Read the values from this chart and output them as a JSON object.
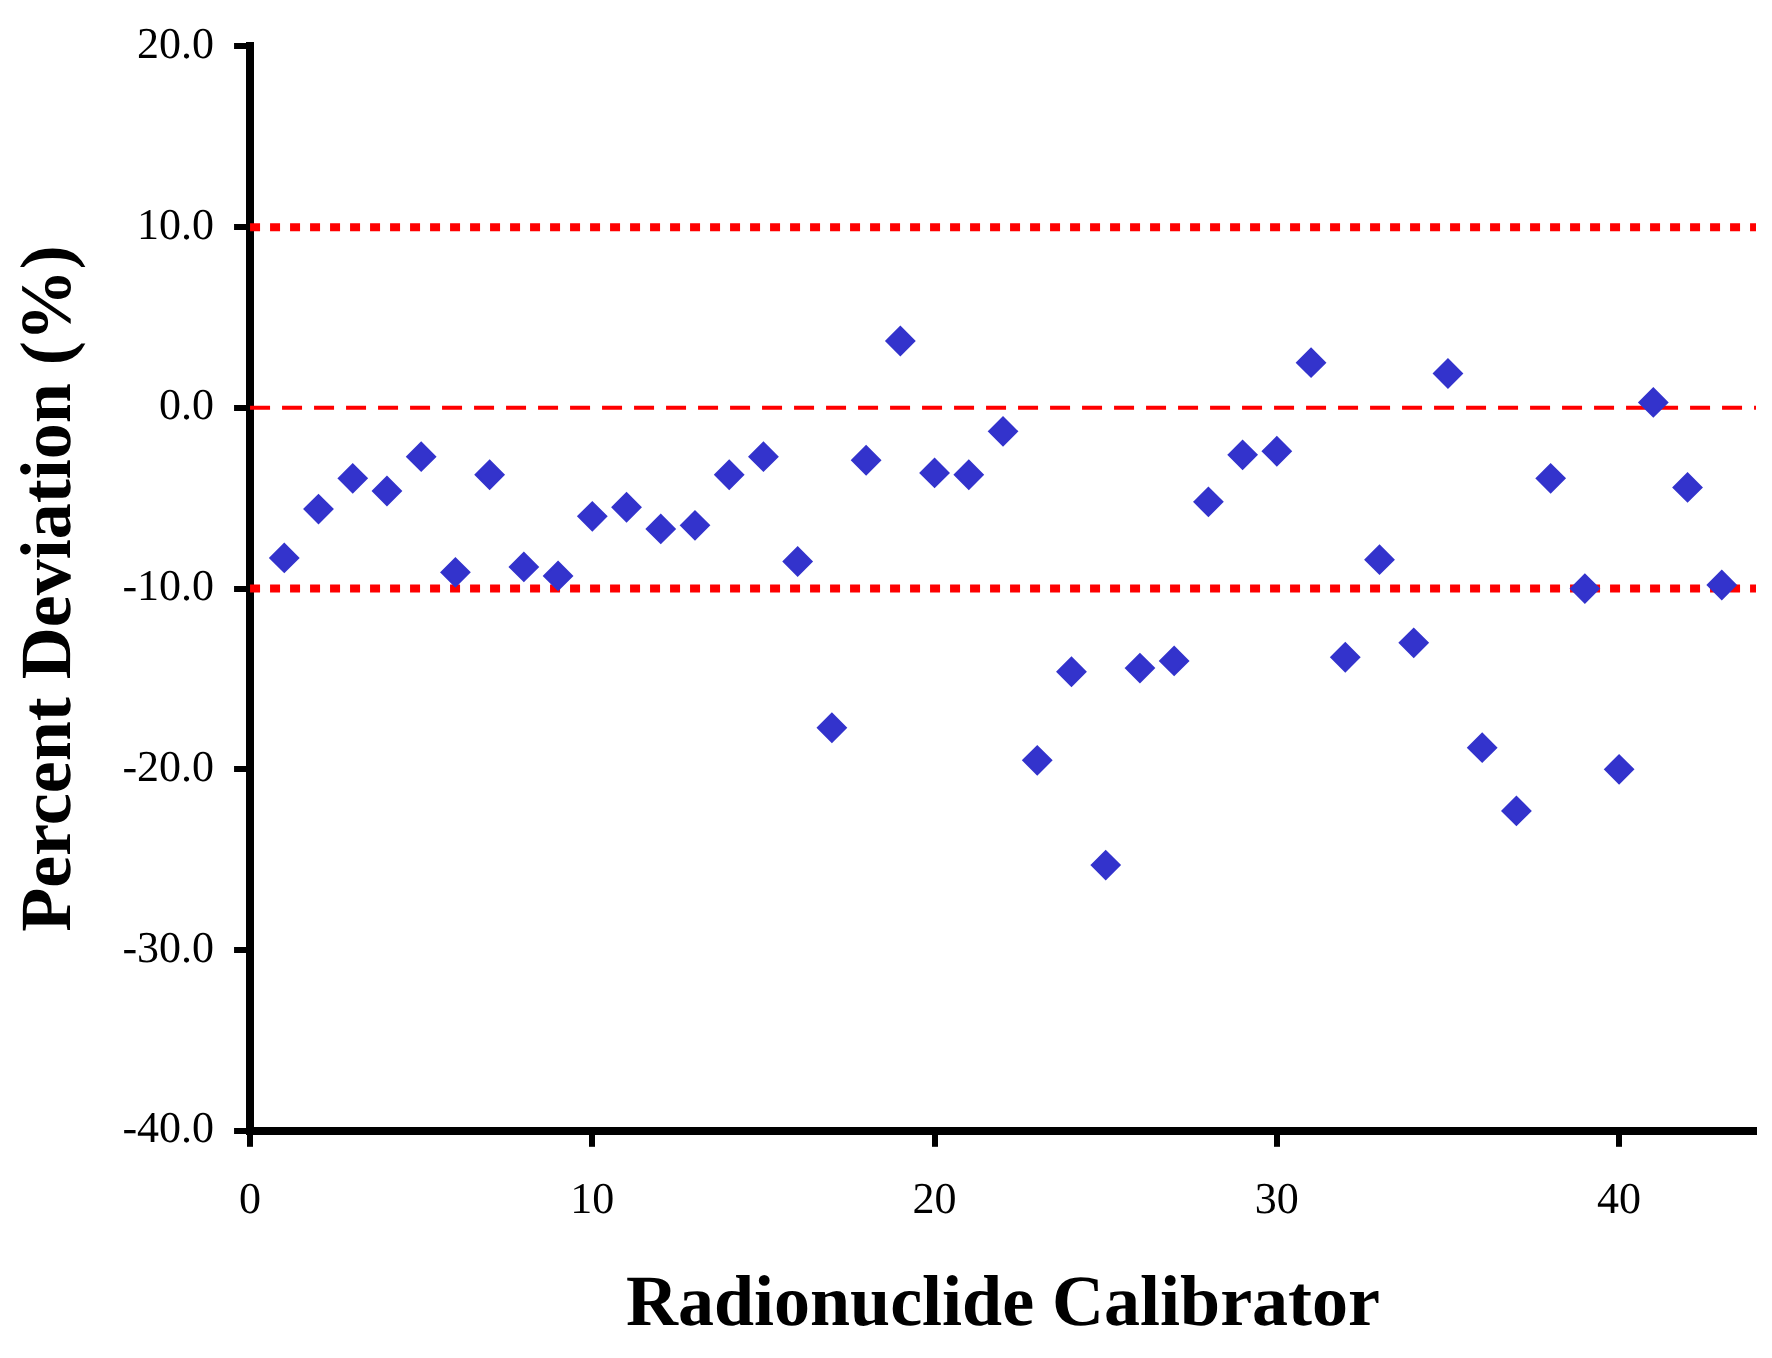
{
  "chart_data": {
    "type": "scatter",
    "xlabel": "Radionuclide Calibrator",
    "ylabel": "Percent Deviation (%)",
    "x": [
      1,
      2,
      3,
      4,
      5,
      6,
      7,
      8,
      9,
      10,
      11,
      12,
      13,
      14,
      15,
      16,
      17,
      18,
      19,
      20,
      21,
      22,
      23,
      24,
      25,
      26,
      27,
      28,
      29,
      30,
      31,
      32,
      33,
      34,
      35,
      36,
      37,
      38,
      39,
      40,
      41,
      42,
      43
    ],
    "series": [
      {
        "color": "#3333cc",
        "values": [
          -8.3,
          -5.6,
          -3.9,
          -4.6,
          -2.7,
          -9.1,
          -3.7,
          -8.8,
          -9.3,
          -6.0,
          -5.5,
          -6.7,
          -6.5,
          -3.7,
          -2.7,
          -8.5,
          -17.7,
          -2.9,
          3.7,
          -3.6,
          -3.7,
          -1.3,
          -19.5,
          -14.6,
          -25.3,
          -14.4,
          -14.0,
          -5.2,
          -2.6,
          -2.4,
          2.5,
          -13.8,
          -8.4,
          -13.0,
          1.9,
          -18.8,
          -22.3,
          -3.9,
          -10.0,
          -20.0,
          0.3,
          -4.4,
          -9.8
        ]
      }
    ],
    "marker": "diamond",
    "xlim": [
      0,
      44
    ],
    "xticks": [
      0,
      10,
      20,
      30,
      40
    ],
    "ylim": [
      -40,
      20
    ],
    "yticks": [
      {
        "value": -40,
        "label": "-40.0"
      },
      {
        "value": -30,
        "label": "-30.0"
      },
      {
        "value": -20,
        "label": "-20.0"
      },
      {
        "value": -10,
        "label": "-10.0"
      },
      {
        "value": 0,
        "label": "0.0"
      },
      {
        "value": 10,
        "label": "10.0"
      },
      {
        "value": 20,
        "label": "20.0"
      }
    ],
    "ref_lines": [
      {
        "axis": "y",
        "value": 10,
        "color": "#ff0000",
        "line_style": "dotted"
      },
      {
        "axis": "y",
        "value": 0,
        "color": "#ff0000",
        "line_style": "dashed"
      },
      {
        "axis": "y",
        "value": -10,
        "color": "#ff0000",
        "line_style": "dotted"
      }
    ],
    "grid": false,
    "legend": false
  }
}
